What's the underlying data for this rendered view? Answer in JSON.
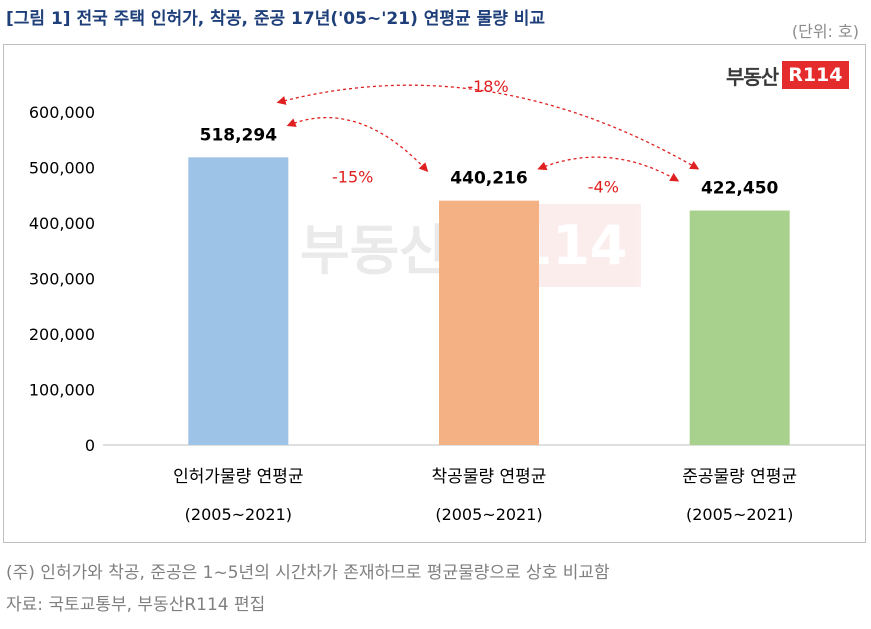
{
  "header": {
    "title": "[그림 1] 전국 주택 인허가, 착공, 준공 17년('05~'21) 연평균 물량 비교",
    "unit": "(단위: 호)"
  },
  "logo": {
    "text": "부동산",
    "badge": "R114"
  },
  "watermark": {
    "text": "부동산",
    "badge": "R114"
  },
  "chart_data": {
    "type": "bar",
    "categories": [
      {
        "name": "인허가물량 연평균",
        "period": "(2005~2021)"
      },
      {
        "name": "착공물량 연평균",
        "period": "(2005~2021)"
      },
      {
        "name": "준공물량 연평균",
        "period": "(2005~2021)"
      }
    ],
    "values": [
      518294,
      440216,
      422450
    ],
    "value_labels": [
      "518,294",
      "440,216",
      "422,450"
    ],
    "colors": [
      "#9dc3e6",
      "#f4b183",
      "#a9d18e"
    ],
    "ylim": [
      0,
      600000
    ],
    "yticks": [
      0,
      100000,
      200000,
      300000,
      400000,
      500000,
      600000
    ],
    "ytick_labels": [
      "0",
      "100,000",
      "200,000",
      "300,000",
      "400,000",
      "500,000",
      "600,000"
    ],
    "grid": false,
    "annotations": [
      {
        "from": 0,
        "to": 1,
        "label": "-15%"
      },
      {
        "from": 1,
        "to": 2,
        "label": "-4%"
      },
      {
        "from": 0,
        "to": 2,
        "label": "-18%"
      }
    ],
    "annotation_color": "#e02020"
  },
  "footer": {
    "note": "(주) 인허가와 착공, 준공은 1~5년의 시간차가 존재하므로 평균물량으로 상호 비교함",
    "source": "자료: 국토교통부, 부동산R114 편집"
  }
}
